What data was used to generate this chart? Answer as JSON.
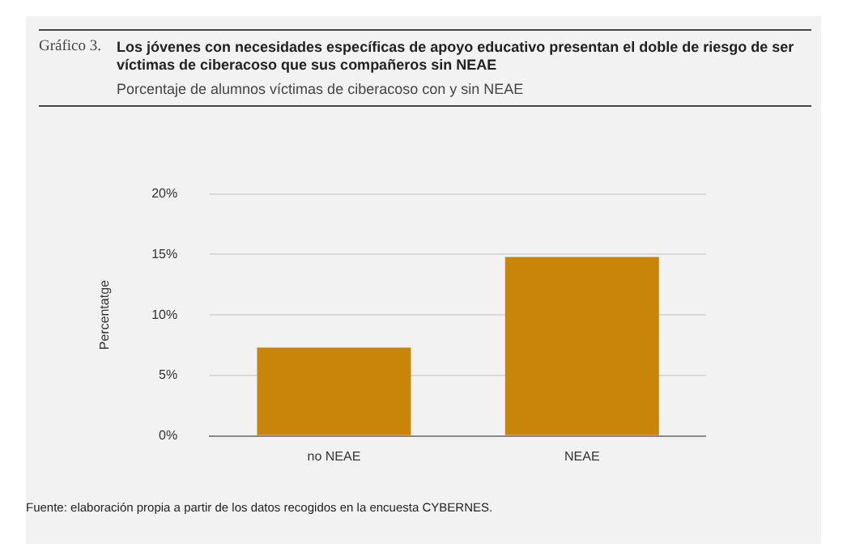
{
  "chart_data": {
    "type": "bar",
    "title": "Los jóvenes con necesidades específicas de apoyo educativo presentan el doble de riesgo de ser víctimas de ciberacoso que sus compañeros sin NEAE",
    "subtitle": "Porcentaje de alumnos víctimas de ciberacoso con y sin NEAE",
    "ylabel": "Percentatge",
    "categories": [
      "no NEAE",
      "NEAE"
    ],
    "values": [
      7.3,
      14.8
    ],
    "color": "#c8850a",
    "ylim": [
      0,
      20
    ],
    "yticks": [
      {
        "value": 0,
        "label": "0%"
      },
      {
        "value": 5,
        "label": "5%"
      },
      {
        "value": 10,
        "label": "10%"
      },
      {
        "value": 15,
        "label": "15%"
      },
      {
        "value": 20,
        "label": "20%"
      }
    ],
    "grid": "y",
    "annotations": [
      "Gráfico 3.",
      "Fuente: elaboración propia a partir de los datos recogidos en la encuesta CYBERNES."
    ]
  }
}
